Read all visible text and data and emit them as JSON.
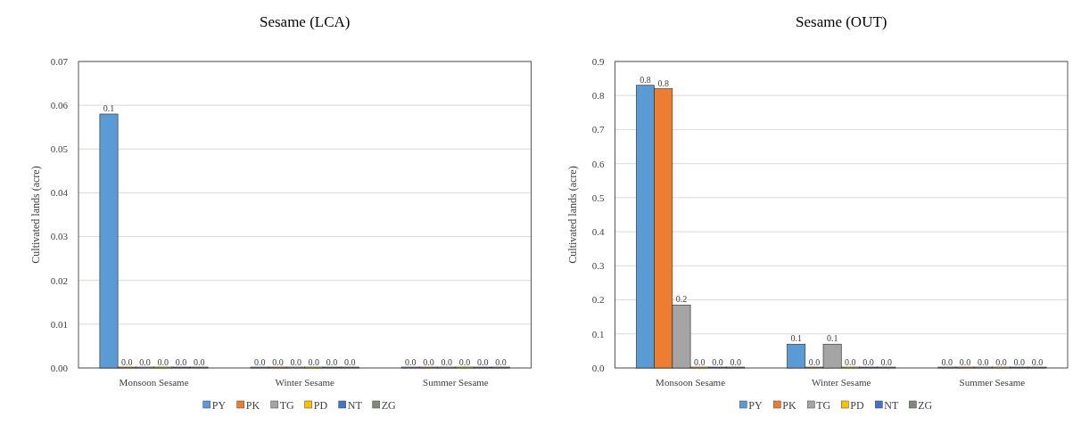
{
  "chart_data": [
    {
      "type": "bar",
      "title": "Sesame (LCA)",
      "ylabel": "Cultivated lands (acre)",
      "categories": [
        "Monsoon Sesame",
        "Winter Sesame",
        "Summer Sesame"
      ],
      "series": [
        {
          "name": "PY",
          "color": "#5b9bd5",
          "values": [
            0.058,
            0,
            0
          ],
          "value_labels": [
            "0.1",
            "0.0",
            "0.0"
          ]
        },
        {
          "name": "PK",
          "color": "#ed7d31",
          "values": [
            0,
            0,
            0
          ],
          "value_labels": [
            "0.0",
            "0.0",
            "0.0"
          ]
        },
        {
          "name": "TG",
          "color": "#a5a5a5",
          "values": [
            0,
            0,
            0
          ],
          "value_labels": [
            "0.0",
            "0.0",
            "0.0"
          ]
        },
        {
          "name": "PD",
          "color": "#ffc000",
          "values": [
            0,
            0,
            0
          ],
          "value_labels": [
            "0.0",
            "0.0",
            "0.0"
          ]
        },
        {
          "name": "NT",
          "color": "#4472c4",
          "values": [
            0,
            0,
            0
          ],
          "value_labels": [
            "0.0",
            "0.0",
            "0.0"
          ]
        },
        {
          "name": "ZG",
          "color": "#7f8a7a",
          "values": [
            0,
            0,
            0
          ],
          "value_labels": [
            "0.0",
            "0.0",
            "0.0"
          ]
        }
      ],
      "ylim": [
        0,
        0.07
      ],
      "yticks": [
        {
          "value": 0,
          "label": "0.00"
        },
        {
          "value": 0.01,
          "label": "0.01"
        },
        {
          "value": 0.02,
          "label": "0.02"
        },
        {
          "value": 0.03,
          "label": "0.03"
        },
        {
          "value": 0.04,
          "label": "0.04"
        },
        {
          "value": 0.05,
          "label": "0.05"
        },
        {
          "value": 0.06,
          "label": "0.06"
        },
        {
          "value": 0.07,
          "label": "0.07"
        }
      ],
      "grid": "y",
      "legend": "bottom"
    },
    {
      "type": "bar",
      "title": "Sesame (OUT)",
      "ylabel": "Cultivated lands (acre)",
      "categories": [
        "Monsoon Sesame",
        "Winter Sesame",
        "Summer Sesame"
      ],
      "series": [
        {
          "name": "PY",
          "color": "#5b9bd5",
          "values": [
            0.83,
            0.07,
            0
          ],
          "value_labels": [
            "0.8",
            "0.1",
            "0.0"
          ]
        },
        {
          "name": "PK",
          "color": "#ed7d31",
          "values": [
            0.82,
            0,
            0
          ],
          "value_labels": [
            "0.8",
            "0.0",
            "0.0"
          ]
        },
        {
          "name": "TG",
          "color": "#a5a5a5",
          "values": [
            0.185,
            0.07,
            0
          ],
          "value_labels": [
            "0.2",
            "0.1",
            "0.0"
          ]
        },
        {
          "name": "PD",
          "color": "#ffc000",
          "values": [
            0,
            0,
            0
          ],
          "value_labels": [
            "0.0",
            "0.0",
            "0.0"
          ]
        },
        {
          "name": "NT",
          "color": "#4472c4",
          "values": [
            0,
            0,
            0
          ],
          "value_labels": [
            "0.0",
            "0.0",
            "0.0"
          ]
        },
        {
          "name": "ZG",
          "color": "#7f8a7a",
          "values": [
            0,
            0,
            0
          ],
          "value_labels": [
            "0.0",
            "0.0",
            "0.0"
          ]
        }
      ],
      "ylim": [
        0,
        0.9
      ],
      "yticks": [
        {
          "value": 0,
          "label": "0.0"
        },
        {
          "value": 0.1,
          "label": "0.1"
        },
        {
          "value": 0.2,
          "label": "0.2"
        },
        {
          "value": 0.3,
          "label": "0.3"
        },
        {
          "value": 0.4,
          "label": "0.4"
        },
        {
          "value": 0.5,
          "label": "0.5"
        },
        {
          "value": 0.6,
          "label": "0.6"
        },
        {
          "value": 0.7,
          "label": "0.7"
        },
        {
          "value": 0.8,
          "label": "0.8"
        },
        {
          "value": 0.9,
          "label": "0.9"
        }
      ],
      "grid": "y",
      "legend": "bottom"
    }
  ]
}
